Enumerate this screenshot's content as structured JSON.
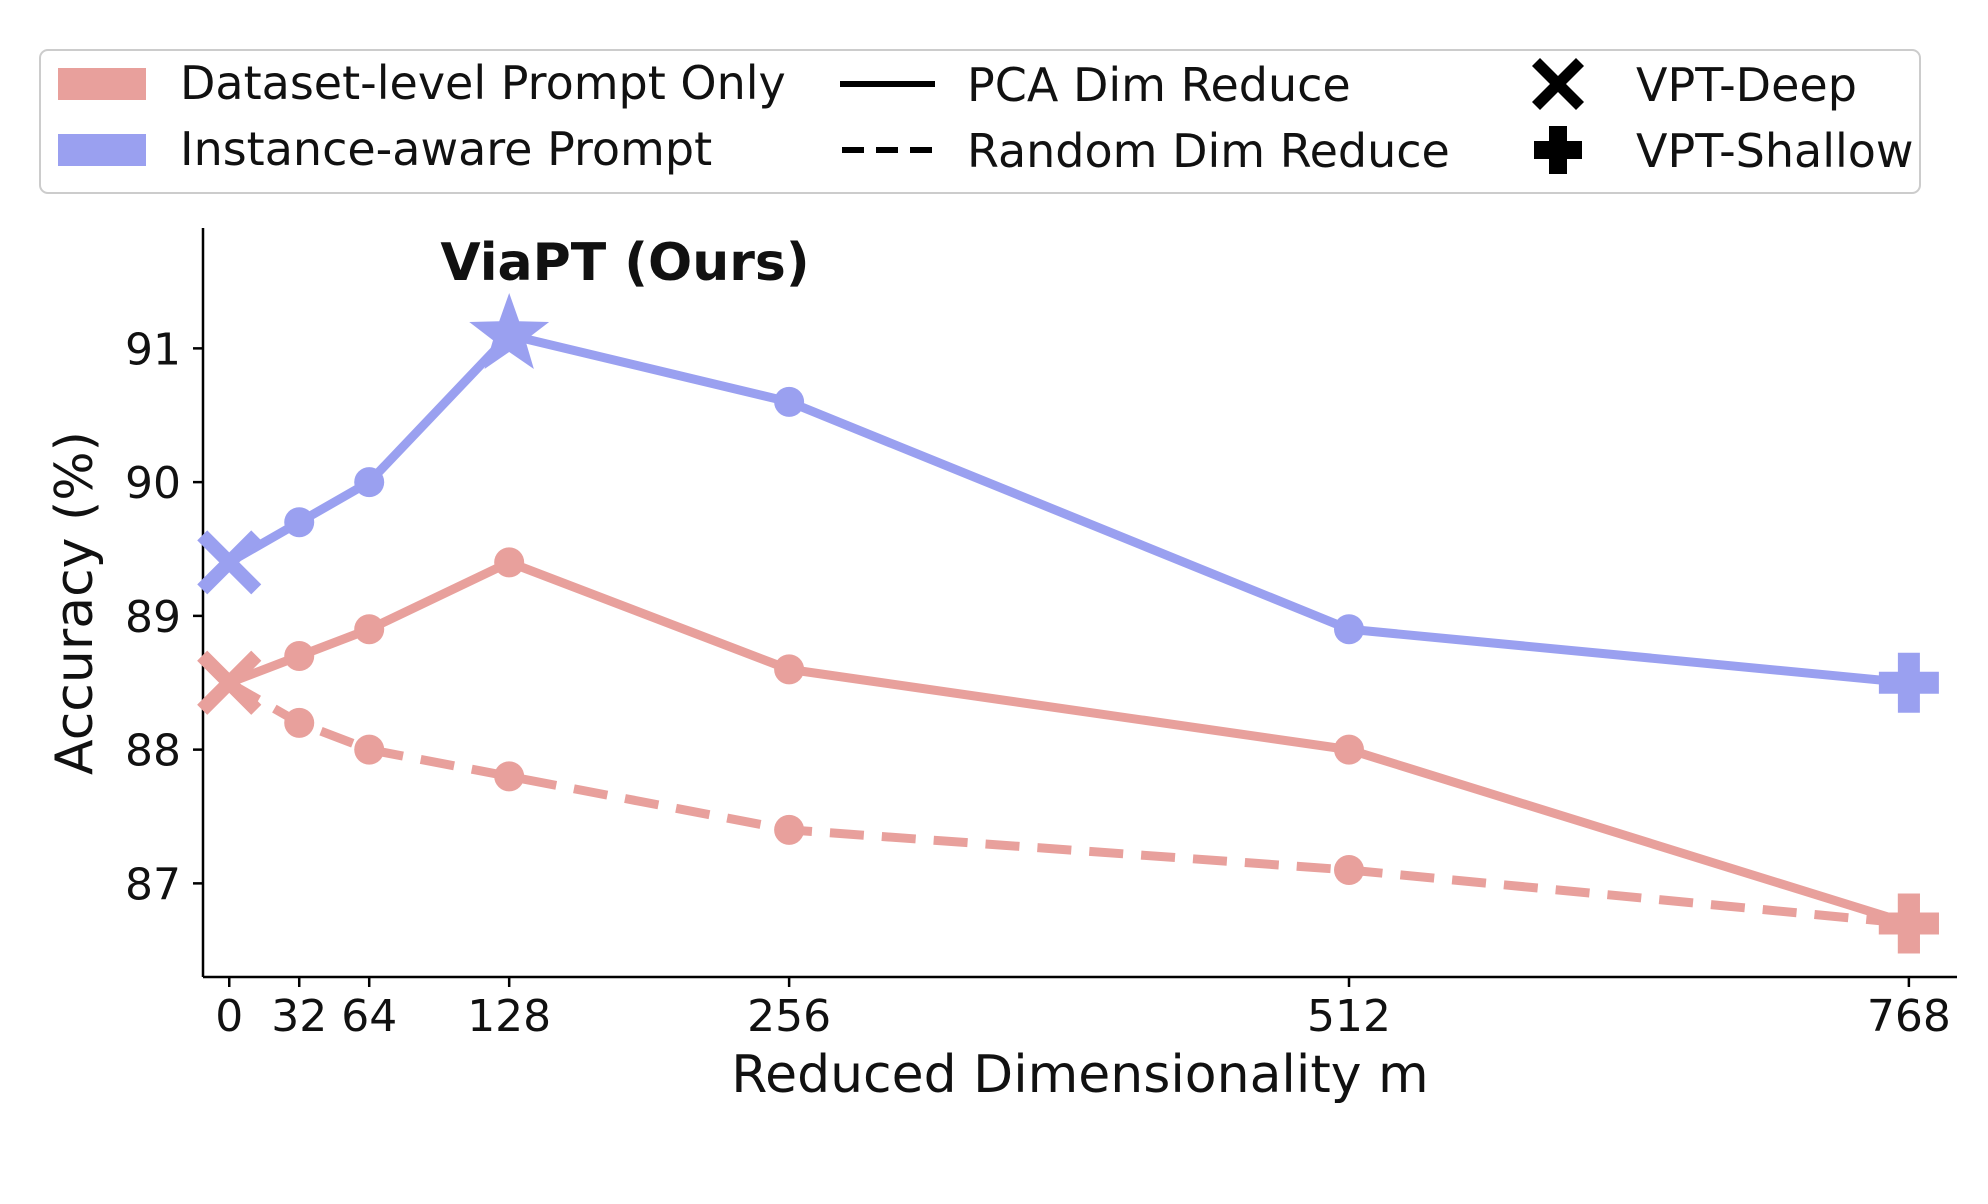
{
  "chart_data": {
    "type": "line",
    "title": "",
    "xlabel": "Reduced Dimensionality m",
    "ylabel": "Accuracy (%)",
    "xlim": [
      -12,
      790
    ],
    "ylim": [
      86.3,
      91.9
    ],
    "xticks": [
      0,
      32,
      64,
      128,
      256,
      512,
      768
    ],
    "xtick_labels": [
      "0",
      "32",
      "64",
      "128",
      "256",
      "512",
      "768"
    ],
    "yticks": [
      87,
      88,
      89,
      90,
      91
    ],
    "ytick_labels": [
      "87",
      "88",
      "89",
      "90",
      "91"
    ],
    "grid": false,
    "series": [
      {
        "name": "Instance-aware Prompt (PCA Dim Reduce)",
        "color": "#9aa0f0",
        "style": "solid",
        "x": [
          0,
          32,
          64,
          128,
          256,
          512,
          768
        ],
        "y": [
          89.4,
          89.7,
          90.0,
          91.1,
          90.6,
          88.9,
          88.5
        ],
        "markers": [
          "x",
          "o",
          "o",
          "star",
          "o",
          "o",
          "plus"
        ]
      },
      {
        "name": "Dataset-level Prompt Only (PCA Dim Reduce)",
        "color": "#e8a09c",
        "style": "solid",
        "x": [
          0,
          32,
          64,
          128,
          256,
          512,
          768
        ],
        "y": [
          88.5,
          88.7,
          88.9,
          89.4,
          88.6,
          88.0,
          86.7
        ],
        "markers": [
          "x",
          "o",
          "o",
          "o",
          "o",
          "o",
          "plus"
        ]
      },
      {
        "name": "Dataset-level Prompt Only (Random Dim Reduce)",
        "color": "#e8a09c",
        "style": "dashed",
        "x": [
          0,
          32,
          64,
          128,
          256,
          512,
          768
        ],
        "y": [
          88.5,
          88.2,
          88.0,
          87.8,
          87.4,
          87.1,
          86.7
        ],
        "markers": [
          "x",
          "o",
          "o",
          "o",
          "o",
          "o",
          "plus"
        ]
      }
    ],
    "annotations": [
      {
        "text": "ViaPT (Ours)",
        "x": 128,
        "y": 91.1
      }
    ],
    "legend": {
      "position": "top",
      "entries": [
        {
          "label": "Dataset-level Prompt Only",
          "kind": "patch",
          "color": "#e8a09c"
        },
        {
          "label": "Instance-aware Prompt",
          "kind": "patch",
          "color": "#9aa0f0"
        },
        {
          "label": "PCA Dim Reduce",
          "kind": "line-solid",
          "color": "#000000"
        },
        {
          "label": "Random Dim Reduce",
          "kind": "line-dashed",
          "color": "#000000"
        },
        {
          "label": "VPT-Deep",
          "kind": "marker-x",
          "color": "#000000"
        },
        {
          "label": "VPT-Shallow",
          "kind": "marker-plus",
          "color": "#000000"
        }
      ]
    }
  }
}
